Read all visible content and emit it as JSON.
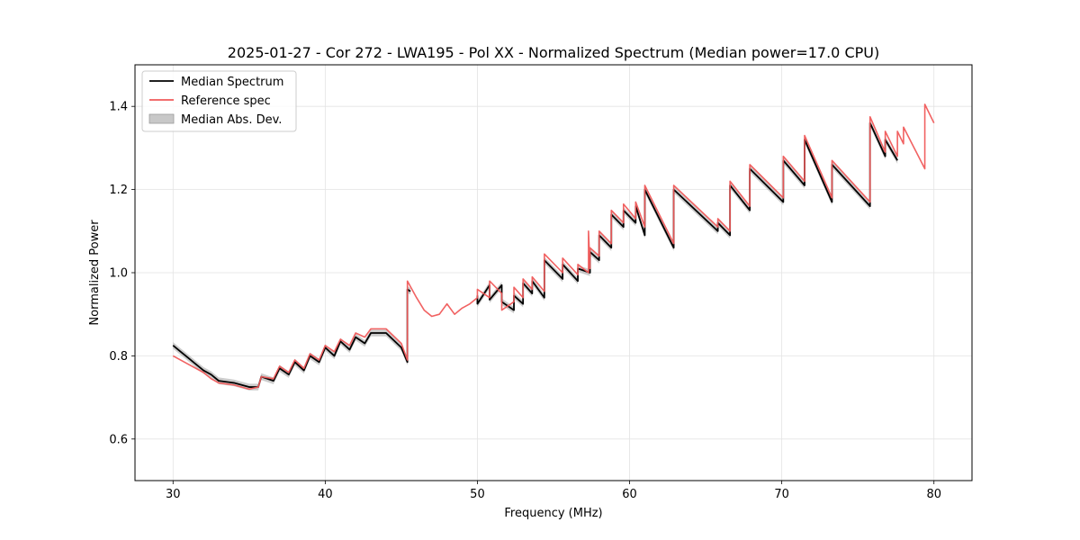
{
  "chart_data": {
    "type": "line",
    "title": "2025-01-27 - Cor 272 - LWA195 - Pol XX - Normalized Spectrum (Median power=17.0 CPU)",
    "xlabel": "Frequency (MHz)",
    "ylabel": "Normalized Power",
    "xlim": [
      27.5,
      82.5
    ],
    "ylim": [
      0.5,
      1.5
    ],
    "xticks": [
      30,
      40,
      50,
      60,
      70,
      80
    ],
    "yticks": [
      0.6,
      0.8,
      1.0,
      1.2,
      1.4
    ],
    "xtick_labels": [
      "30",
      "40",
      "50",
      "60",
      "70",
      "80"
    ],
    "ytick_labels": [
      "0.6",
      "0.8",
      "1.0",
      "1.2",
      "1.4"
    ],
    "grid": true,
    "legend_position": "top-left",
    "legend": [
      "Median Spectrum",
      "Reference spec",
      "Median Abs. Dev."
    ],
    "series": [
      {
        "name": "Median Spectrum",
        "color": "#000000",
        "x": [
          30.0,
          30.5,
          31.0,
          31.5,
          32.0,
          32.5,
          33.0,
          34.0,
          35.0,
          35.6,
          35.8,
          36.6,
          37.0,
          37.6,
          38.0,
          38.6,
          39.0,
          39.6,
          40.0,
          40.6,
          41.0,
          41.6,
          42.0,
          42.6,
          43.0,
          44.0,
          45.0,
          45.4,
          45.4,
          45.6,
          null,
          50.0,
          50.0,
          50.8,
          50.8,
          51.6,
          51.6,
          52.4,
          52.4,
          53.0,
          53.0,
          53.6,
          53.6,
          54.4,
          54.4,
          55.6,
          55.6,
          56.6,
          56.6,
          57.4,
          57.4,
          58.0,
          58.0,
          58.8,
          58.8,
          59.6,
          59.6,
          60.4,
          60.4,
          61.0,
          61.0,
          62.9,
          62.9,
          65.8,
          65.8,
          66.6,
          66.6,
          67.9,
          67.9,
          70.1,
          70.1,
          71.5,
          71.5,
          73.3,
          73.3,
          75.8,
          75.8,
          76.8,
          76.8,
          77.6
        ],
        "y": [
          0.825,
          0.81,
          0.795,
          0.78,
          0.765,
          0.755,
          0.74,
          0.735,
          0.725,
          0.725,
          0.75,
          0.74,
          0.77,
          0.755,
          0.785,
          0.765,
          0.8,
          0.785,
          0.82,
          0.8,
          0.835,
          0.815,
          0.845,
          0.83,
          0.855,
          0.855,
          0.82,
          0.785,
          0.96,
          0.955,
          null,
          0.945,
          0.925,
          0.97,
          0.935,
          0.97,
          0.93,
          0.91,
          0.945,
          0.925,
          0.975,
          0.95,
          0.98,
          0.94,
          1.03,
          0.985,
          1.02,
          0.98,
          1.01,
          1.0,
          1.05,
          1.03,
          1.09,
          1.06,
          1.14,
          1.11,
          1.15,
          1.12,
          1.16,
          1.09,
          1.2,
          1.06,
          1.2,
          1.1,
          1.12,
          1.09,
          1.21,
          1.15,
          1.25,
          1.17,
          1.27,
          1.21,
          1.32,
          1.17,
          1.26,
          1.16,
          1.36,
          1.28,
          1.32,
          1.27
        ]
      },
      {
        "name": "Reference spec",
        "color": "#f05a5a",
        "x": [
          30.0,
          30.5,
          31.0,
          31.5,
          32.0,
          32.5,
          33.0,
          34.0,
          35.0,
          35.6,
          35.8,
          36.6,
          37.0,
          37.6,
          38.0,
          38.6,
          39.0,
          39.6,
          40.0,
          40.6,
          41.0,
          41.6,
          42.0,
          42.6,
          43.0,
          44.0,
          45.0,
          45.4,
          45.4,
          46.0,
          46.5,
          47.0,
          47.5,
          48.0,
          48.5,
          49.0,
          49.5,
          50.0,
          50.0,
          50.8,
          50.8,
          51.6,
          51.6,
          52.4,
          52.4,
          53.0,
          53.0,
          53.6,
          53.6,
          54.4,
          54.4,
          55.6,
          55.6,
          56.6,
          56.6,
          57.3,
          57.3,
          57.4,
          57.4,
          58.0,
          58.0,
          58.8,
          58.8,
          59.6,
          59.6,
          60.4,
          60.4,
          61.0,
          61.0,
          62.9,
          62.9,
          65.8,
          65.8,
          66.6,
          66.6,
          67.9,
          67.9,
          70.1,
          70.1,
          71.5,
          71.5,
          73.3,
          73.3,
          75.8,
          75.8,
          76.8,
          76.8,
          77.6,
          77.6,
          78.0,
          78.0,
          79.4,
          79.4,
          80.0
        ],
        "y": [
          0.8,
          0.79,
          0.78,
          0.77,
          0.76,
          0.745,
          0.735,
          0.73,
          0.72,
          0.725,
          0.75,
          0.745,
          0.775,
          0.76,
          0.79,
          0.77,
          0.805,
          0.79,
          0.825,
          0.81,
          0.84,
          0.825,
          0.855,
          0.845,
          0.865,
          0.865,
          0.83,
          0.79,
          0.98,
          0.94,
          0.91,
          0.895,
          0.9,
          0.925,
          0.9,
          0.915,
          0.925,
          0.94,
          0.96,
          0.94,
          0.98,
          0.95,
          0.91,
          0.93,
          0.965,
          0.94,
          0.985,
          0.96,
          0.99,
          0.955,
          1.045,
          1.0,
          1.035,
          0.995,
          1.02,
          1.0,
          1.1,
          1.01,
          1.06,
          1.04,
          1.1,
          1.07,
          1.15,
          1.12,
          1.165,
          1.13,
          1.17,
          1.11,
          1.21,
          1.07,
          1.21,
          1.11,
          1.13,
          1.1,
          1.22,
          1.16,
          1.26,
          1.18,
          1.28,
          1.22,
          1.33,
          1.18,
          1.27,
          1.17,
          1.375,
          1.29,
          1.34,
          1.28,
          1.34,
          1.31,
          1.35,
          1.25,
          1.405,
          1.36
        ]
      }
    ],
    "band": {
      "name": "Median Abs. Dev.",
      "color": "#b0b0b0",
      "halfwidth": 0.008
    }
  }
}
